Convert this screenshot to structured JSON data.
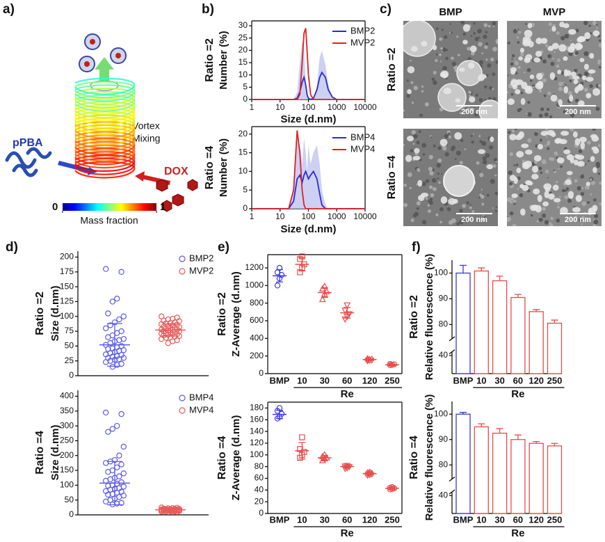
{
  "panel_labels": [
    "a)",
    "b)",
    "c)",
    "d)",
    "e)",
    "f)"
  ],
  "schematic": {
    "polymer": "pPBA",
    "process": [
      "Vortex",
      "Mixing"
    ],
    "drug": "DOX",
    "colorbar": {
      "label": "Mass fraction",
      "ticks": [
        0,
        1
      ]
    }
  },
  "tem": {
    "columns": [
      "BMP",
      "MVP"
    ],
    "rows": [
      "Ratio =2",
      "Ratio =4"
    ],
    "scale_bar": "200 nm"
  },
  "chart_data": [
    {
      "type": "line",
      "row_label": "Ratio =2",
      "y_label": "Number (%)",
      "x_label": "Size (d.nm)",
      "xscale": "log",
      "xlim": [
        1,
        10000
      ],
      "xticks": [
        1,
        10,
        100,
        1000,
        10000
      ],
      "ylim": [
        0,
        32
      ],
      "yticks": [
        0,
        5,
        10,
        15,
        20,
        25,
        30
      ],
      "x": [
        1,
        10,
        20,
        30,
        40,
        50,
        60,
        70,
        80,
        90,
        100,
        120,
        150,
        200,
        250,
        300,
        400,
        500,
        700,
        1000,
        10000
      ],
      "shade": {
        "color": "#c3c8f0",
        "values": [
          0,
          0,
          0,
          0,
          3,
          15,
          24,
          20,
          8,
          2,
          0,
          0,
          0,
          6,
          17,
          20,
          14,
          6,
          1,
          0,
          0
        ]
      },
      "series": [
        {
          "name": "BMP2",
          "color": "#2a2ad0",
          "values": [
            0,
            0,
            0,
            0,
            0.5,
            3,
            7,
            9,
            6,
            2,
            0.5,
            0,
            0.5,
            4,
            9,
            11,
            9,
            4,
            1,
            0,
            0
          ]
        },
        {
          "name": "MVP2",
          "color": "#e02020",
          "values": [
            0,
            0,
            0,
            0,
            0,
            2,
            15,
            27,
            29,
            20,
            10,
            2,
            0,
            0,
            0,
            0,
            0,
            0,
            0,
            0,
            0
          ]
        }
      ]
    },
    {
      "type": "line",
      "row_label": "Ratio =4",
      "y_label": "Number (%)",
      "x_label": "Size (d.nm)",
      "xscale": "log",
      "xlim": [
        1,
        10000
      ],
      "xticks": [
        1,
        10,
        100,
        1000,
        10000
      ],
      "ylim": [
        0,
        22
      ],
      "yticks": [
        0,
        5,
        10,
        15,
        20
      ],
      "x": [
        1,
        10,
        20,
        30,
        40,
        50,
        60,
        70,
        80,
        90,
        100,
        120,
        150,
        200,
        250,
        300,
        400,
        500,
        700,
        1000,
        10000
      ],
      "shade": {
        "color": "#c3c8f0",
        "values": [
          0,
          0,
          0,
          6,
          20,
          17,
          12,
          19,
          15,
          10,
          17,
          12,
          15,
          17,
          12,
          5,
          1,
          0,
          0,
          0,
          0
        ]
      },
      "series": [
        {
          "name": "BMP4",
          "color": "#2a2ad0",
          "values": [
            0,
            0,
            0,
            2,
            8,
            9,
            7,
            9,
            10,
            9,
            8,
            9,
            10,
            8,
            4,
            1,
            0,
            0,
            0,
            0,
            0
          ]
        },
        {
          "name": "MVP4",
          "color": "#e02020",
          "values": [
            0,
            0,
            0,
            5,
            21,
            15,
            5,
            1,
            0,
            0,
            0,
            0,
            0,
            0,
            0,
            0,
            0,
            0,
            0,
            0,
            0
          ]
        }
      ]
    },
    {
      "type": "strip",
      "row_label": "Ratio =2",
      "y_label": "Size (d.nm)",
      "ylim": [
        0,
        210
      ],
      "yticks": [
        0,
        25,
        50,
        75,
        100,
        125,
        150,
        175,
        200
      ],
      "series": [
        {
          "name": "BMP2",
          "color": "#5a5ae6",
          "marker": "circle",
          "mean": 52,
          "sd": 36,
          "values": [
            180,
            175,
            130,
            125,
            105,
            100,
            95,
            90,
            85,
            80,
            75,
            72,
            68,
            65,
            62,
            60,
            58,
            55,
            52,
            50,
            48,
            46,
            45,
            43,
            42,
            40,
            38,
            36,
            35,
            33,
            32,
            30,
            30,
            28,
            27,
            25,
            23,
            20,
            18,
            15
          ]
        },
        {
          "name": "MVP2",
          "color": "#e85a5a",
          "marker": "circle",
          "mean": 77,
          "sd": 10,
          "values": [
            100,
            98,
            96,
            95,
            93,
            92,
            90,
            89,
            88,
            87,
            86,
            85,
            84,
            83,
            82,
            81,
            80,
            79,
            78,
            78,
            77,
            76,
            75,
            75,
            74,
            73,
            72,
            71,
            70,
            70,
            69,
            68,
            67,
            66,
            65,
            64,
            62,
            60,
            58,
            55
          ]
        }
      ]
    },
    {
      "type": "strip",
      "row_label": "Ratio =4",
      "y_label": "Size (d.nm)",
      "ylim": [
        0,
        420
      ],
      "yticks": [
        0,
        50,
        100,
        150,
        200,
        250,
        300,
        350,
        400
      ],
      "series": [
        {
          "name": "BMP4",
          "color": "#5a5ae6",
          "marker": "circle",
          "mean": 107,
          "sd": 73,
          "values": [
            345,
            340,
            300,
            290,
            280,
            230,
            200,
            185,
            180,
            175,
            170,
            160,
            150,
            145,
            140,
            130,
            125,
            120,
            115,
            110,
            105,
            100,
            98,
            95,
            90,
            88,
            85,
            80,
            78,
            75,
            70,
            68,
            65,
            60,
            55,
            50,
            45,
            40,
            38,
            35
          ]
        },
        {
          "name": "MVP4",
          "color": "#e85a5a",
          "marker": "circle",
          "mean": 17,
          "sd": 4,
          "values": [
            25,
            24,
            23,
            22,
            21,
            20,
            20,
            19,
            19,
            18,
            18,
            17,
            17,
            17,
            16,
            16,
            16,
            15,
            15,
            15,
            14,
            14,
            13,
            13,
            12,
            12,
            11,
            11,
            10,
            10
          ]
        }
      ]
    },
    {
      "type": "strip",
      "row_label": "Ratio =2",
      "y_label": "Z-Average (d.nm)",
      "x_label": "Re",
      "ylim": [
        0,
        1350
      ],
      "yticks": [
        0,
        200,
        400,
        600,
        800,
        1000,
        1200
      ],
      "categories": [
        "BMP",
        10,
        30,
        60,
        120,
        250
      ],
      "series": [
        {
          "color": "#3b3bd6",
          "marker": "circle",
          "mean": 1110,
          "sd": 70,
          "values": [
            1000,
            1080,
            1120,
            1150,
            1200
          ]
        },
        {
          "color": "#e84a4a",
          "marker": "square",
          "mean": 1240,
          "sd": 75,
          "values": [
            1150,
            1200,
            1240,
            1300,
            1330
          ]
        },
        {
          "color": "#e84a4a",
          "marker": "triangle",
          "mean": 920,
          "sd": 55,
          "values": [
            840,
            900,
            930,
            960,
            990
          ]
        },
        {
          "color": "#e84a4a",
          "marker": "triangle-down",
          "mean": 690,
          "sd": 60,
          "values": [
            620,
            650,
            680,
            720,
            780
          ]
        },
        {
          "color": "#e84a4a",
          "marker": "diamond",
          "mean": 160,
          "sd": 10,
          "values": [
            150,
            155,
            160,
            165
          ]
        },
        {
          "color": "#e84a4a",
          "marker": "circle",
          "mean": 100,
          "sd": 8,
          "values": [
            95,
            100,
            105,
            110
          ]
        }
      ]
    },
    {
      "type": "strip",
      "row_label": "Ratio =4",
      "y_label": "Z-Average (d.nm)",
      "x_label": "Re",
      "ylim": [
        0,
        190
      ],
      "yticks": [
        0,
        20,
        40,
        60,
        80,
        100,
        120,
        140,
        160,
        180
      ],
      "categories": [
        "BMP",
        10,
        30,
        60,
        120,
        250
      ],
      "series": [
        {
          "color": "#3b3bd6",
          "marker": "circle",
          "mean": 169,
          "sd": 7,
          "values": [
            162,
            165,
            170,
            175,
            180
          ]
        },
        {
          "color": "#e84a4a",
          "marker": "square",
          "mean": 107,
          "sd": 14,
          "values": [
            95,
            100,
            105,
            110,
            130
          ]
        },
        {
          "color": "#e84a4a",
          "marker": "triangle",
          "mean": 95,
          "sd": 4,
          "values": [
            90,
            93,
            95,
            97,
            100
          ]
        },
        {
          "color": "#e84a4a",
          "marker": "triangle-down",
          "mean": 80,
          "sd": 2,
          "values": [
            77,
            78,
            80,
            81,
            82
          ]
        },
        {
          "color": "#e84a4a",
          "marker": "diamond",
          "mean": 68,
          "sd": 2,
          "values": [
            66,
            67,
            68,
            69,
            70
          ]
        },
        {
          "color": "#e84a4a",
          "marker": "circle",
          "mean": 43,
          "sd": 2,
          "values": [
            41,
            42,
            43,
            44,
            45
          ]
        }
      ]
    },
    {
      "type": "bar",
      "row_label": "Ratio =2",
      "y_label": "Relative fluorescence (%)",
      "x_label": "Re",
      "ylim": [
        0,
        105
      ],
      "ybreak": [
        45,
        75
      ],
      "yticks": [
        40,
        80,
        90,
        100
      ],
      "categories": [
        "BMP",
        10,
        30,
        60,
        120,
        250
      ],
      "values": [
        100,
        100.8,
        97,
        90.5,
        85,
        80.5
      ],
      "errors": [
        3,
        1.2,
        1.8,
        1.2,
        0.8,
        1.2
      ],
      "colors": [
        "#3b3bd6",
        "#e84a4a",
        "#e84a4a",
        "#e84a4a",
        "#e84a4a",
        "#e84a4a"
      ]
    },
    {
      "type": "bar",
      "row_label": "Ratio =4",
      "y_label": "Relative fluorescence (%)",
      "x_label": "Re",
      "ylim": [
        0,
        105
      ],
      "ybreak": [
        45,
        75
      ],
      "yticks": [
        40,
        80,
        90,
        100
      ],
      "categories": [
        "BMP",
        10,
        30,
        60,
        120,
        250
      ],
      "values": [
        100,
        95,
        92.5,
        90,
        88.5,
        87.5
      ],
      "errors": [
        0.7,
        1.2,
        1.8,
        1.8,
        0.7,
        1.0
      ],
      "colors": [
        "#3b3bd6",
        "#e84a4a",
        "#e84a4a",
        "#e84a4a",
        "#e84a4a",
        "#e84a4a"
      ]
    }
  ]
}
